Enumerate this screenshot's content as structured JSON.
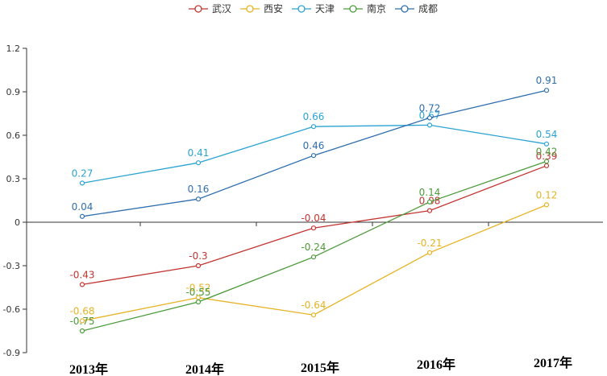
{
  "chart_data": {
    "type": "line",
    "categories": [
      "2013年",
      "2014年",
      "2015年",
      "2016年",
      "2017年"
    ],
    "ylim": [
      -0.9,
      1.2
    ],
    "yticks": [
      -0.9,
      -0.6,
      -0.3,
      0,
      0.3,
      0.6,
      0.9,
      1.2
    ],
    "ytick_labels": [
      "-0.9",
      "-0.6",
      "-0.3",
      "0",
      "0.3",
      "0.6",
      "0.9",
      "1.2"
    ],
    "legend_position": "top-center",
    "grid": false,
    "series": [
      {
        "name": "武汉",
        "color": "#c23531",
        "values": [
          -0.43,
          -0.3,
          -0.04,
          0.08,
          0.39
        ],
        "labels": [
          "-0.43",
          "-0.3",
          "-0.04",
          "0.08",
          "0.39"
        ]
      },
      {
        "name": "西安",
        "color": "#e5b324",
        "values": [
          -0.68,
          -0.52,
          -0.64,
          -0.21,
          0.12
        ],
        "labels": [
          "-0.68",
          "-0.52",
          "-0.64",
          "-0.21",
          "0.12"
        ]
      },
      {
        "name": "天津",
        "color": "#2aa3d1",
        "values": [
          0.27,
          0.41,
          0.66,
          0.67,
          0.54
        ],
        "labels": [
          "0.27",
          "0.41",
          "0.66",
          "0.67",
          "0.54"
        ]
      },
      {
        "name": "南京",
        "color": "#4d9a3a",
        "values": [
          -0.75,
          -0.55,
          -0.24,
          0.14,
          0.42
        ],
        "labels": [
          "-0.75",
          "-0.55",
          "-0.24",
          "0.14",
          "0.42"
        ]
      },
      {
        "name": "成都",
        "color": "#2f6fae",
        "values": [
          0.04,
          0.16,
          0.46,
          0.72,
          0.91
        ],
        "labels": [
          "0.04",
          "0.16",
          "0.46",
          "0.72",
          "0.91"
        ]
      }
    ]
  }
}
